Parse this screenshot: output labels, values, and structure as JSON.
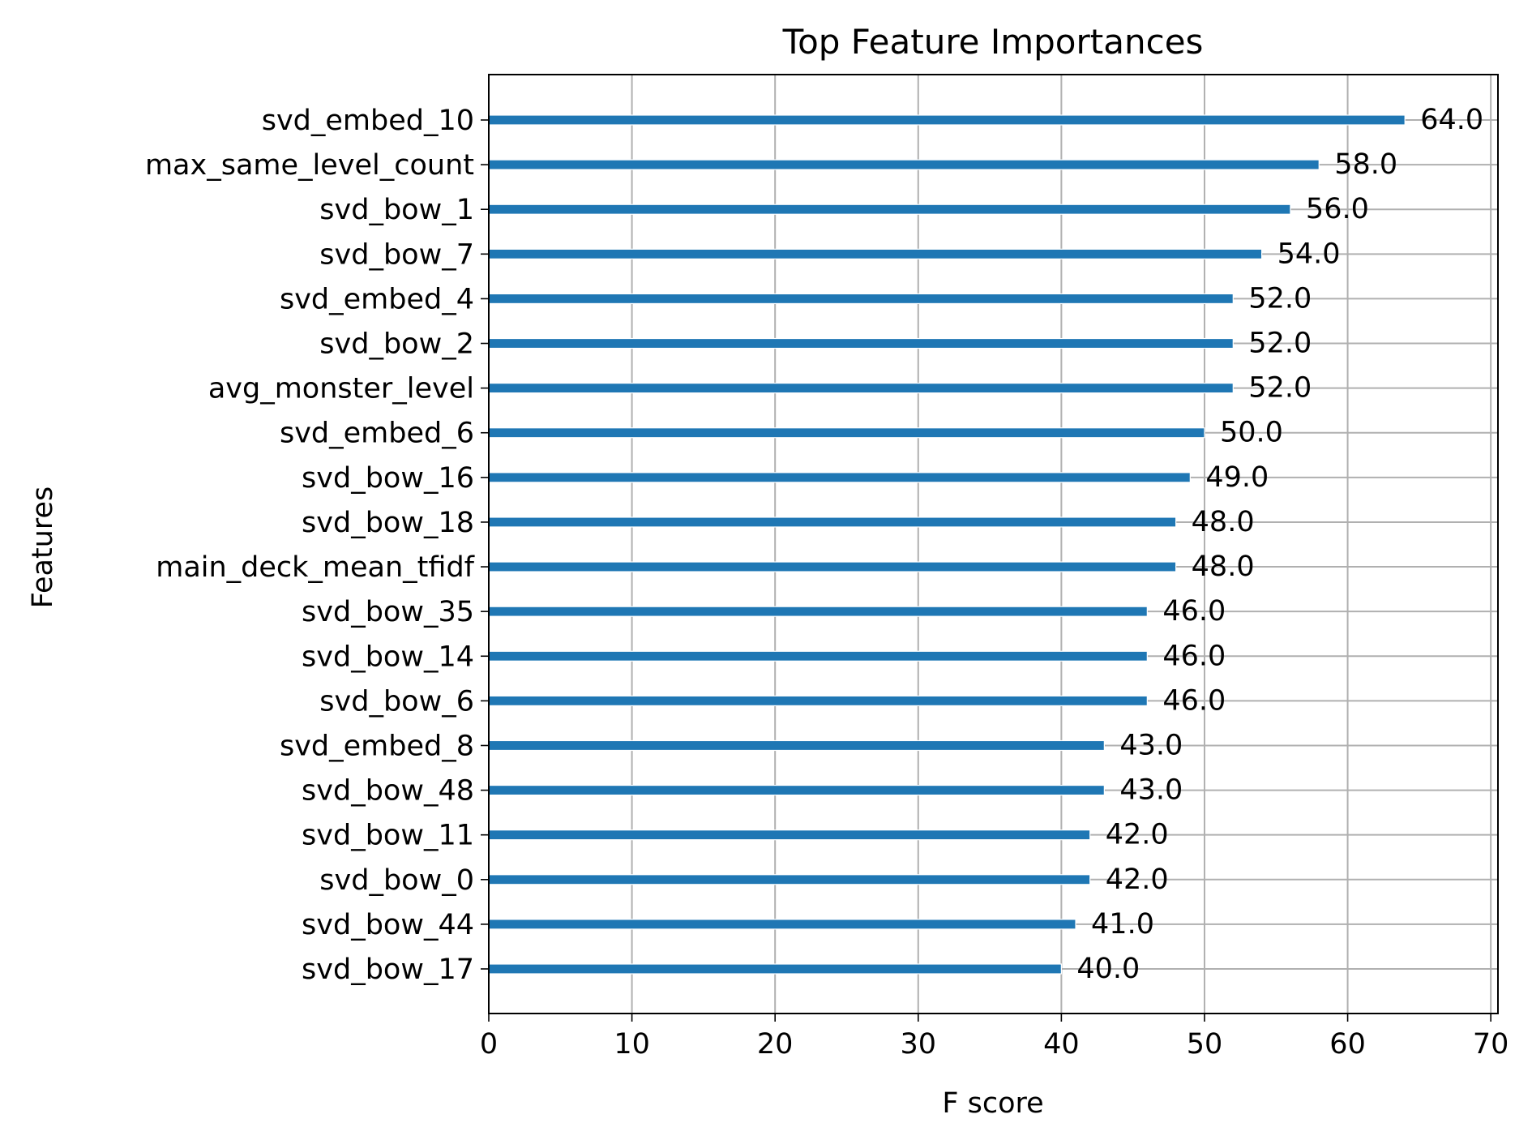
{
  "chart_data": {
    "type": "bar",
    "orientation": "horizontal",
    "title": "Top Feature Importances",
    "xlabel": "F score",
    "ylabel": "Features",
    "xlim": [
      0,
      70.5
    ],
    "xticks": [
      0,
      10,
      20,
      30,
      40,
      50,
      60,
      70
    ],
    "grid": true,
    "bar_color": "#1f77b4",
    "categories": [
      "svd_embed_10",
      "max_same_level_count",
      "svd_bow_1",
      "svd_bow_7",
      "svd_embed_4",
      "svd_bow_2",
      "avg_monster_level",
      "svd_embed_6",
      "svd_bow_16",
      "svd_bow_18",
      "main_deck_mean_tfidf",
      "svd_bow_35",
      "svd_bow_14",
      "svd_bow_6",
      "svd_embed_8",
      "svd_bow_48",
      "svd_bow_11",
      "svd_bow_0",
      "svd_bow_44",
      "svd_bow_17"
    ],
    "values": [
      64,
      58,
      56,
      54,
      52,
      52,
      52,
      50,
      49,
      48,
      48,
      46,
      46,
      46,
      43,
      43,
      42,
      42,
      41,
      40
    ],
    "value_labels": [
      "64.0",
      "58.0",
      "56.0",
      "54.0",
      "52.0",
      "52.0",
      "52.0",
      "50.0",
      "49.0",
      "48.0",
      "48.0",
      "46.0",
      "46.0",
      "46.0",
      "43.0",
      "43.0",
      "42.0",
      "42.0",
      "41.0",
      "40.0"
    ]
  }
}
